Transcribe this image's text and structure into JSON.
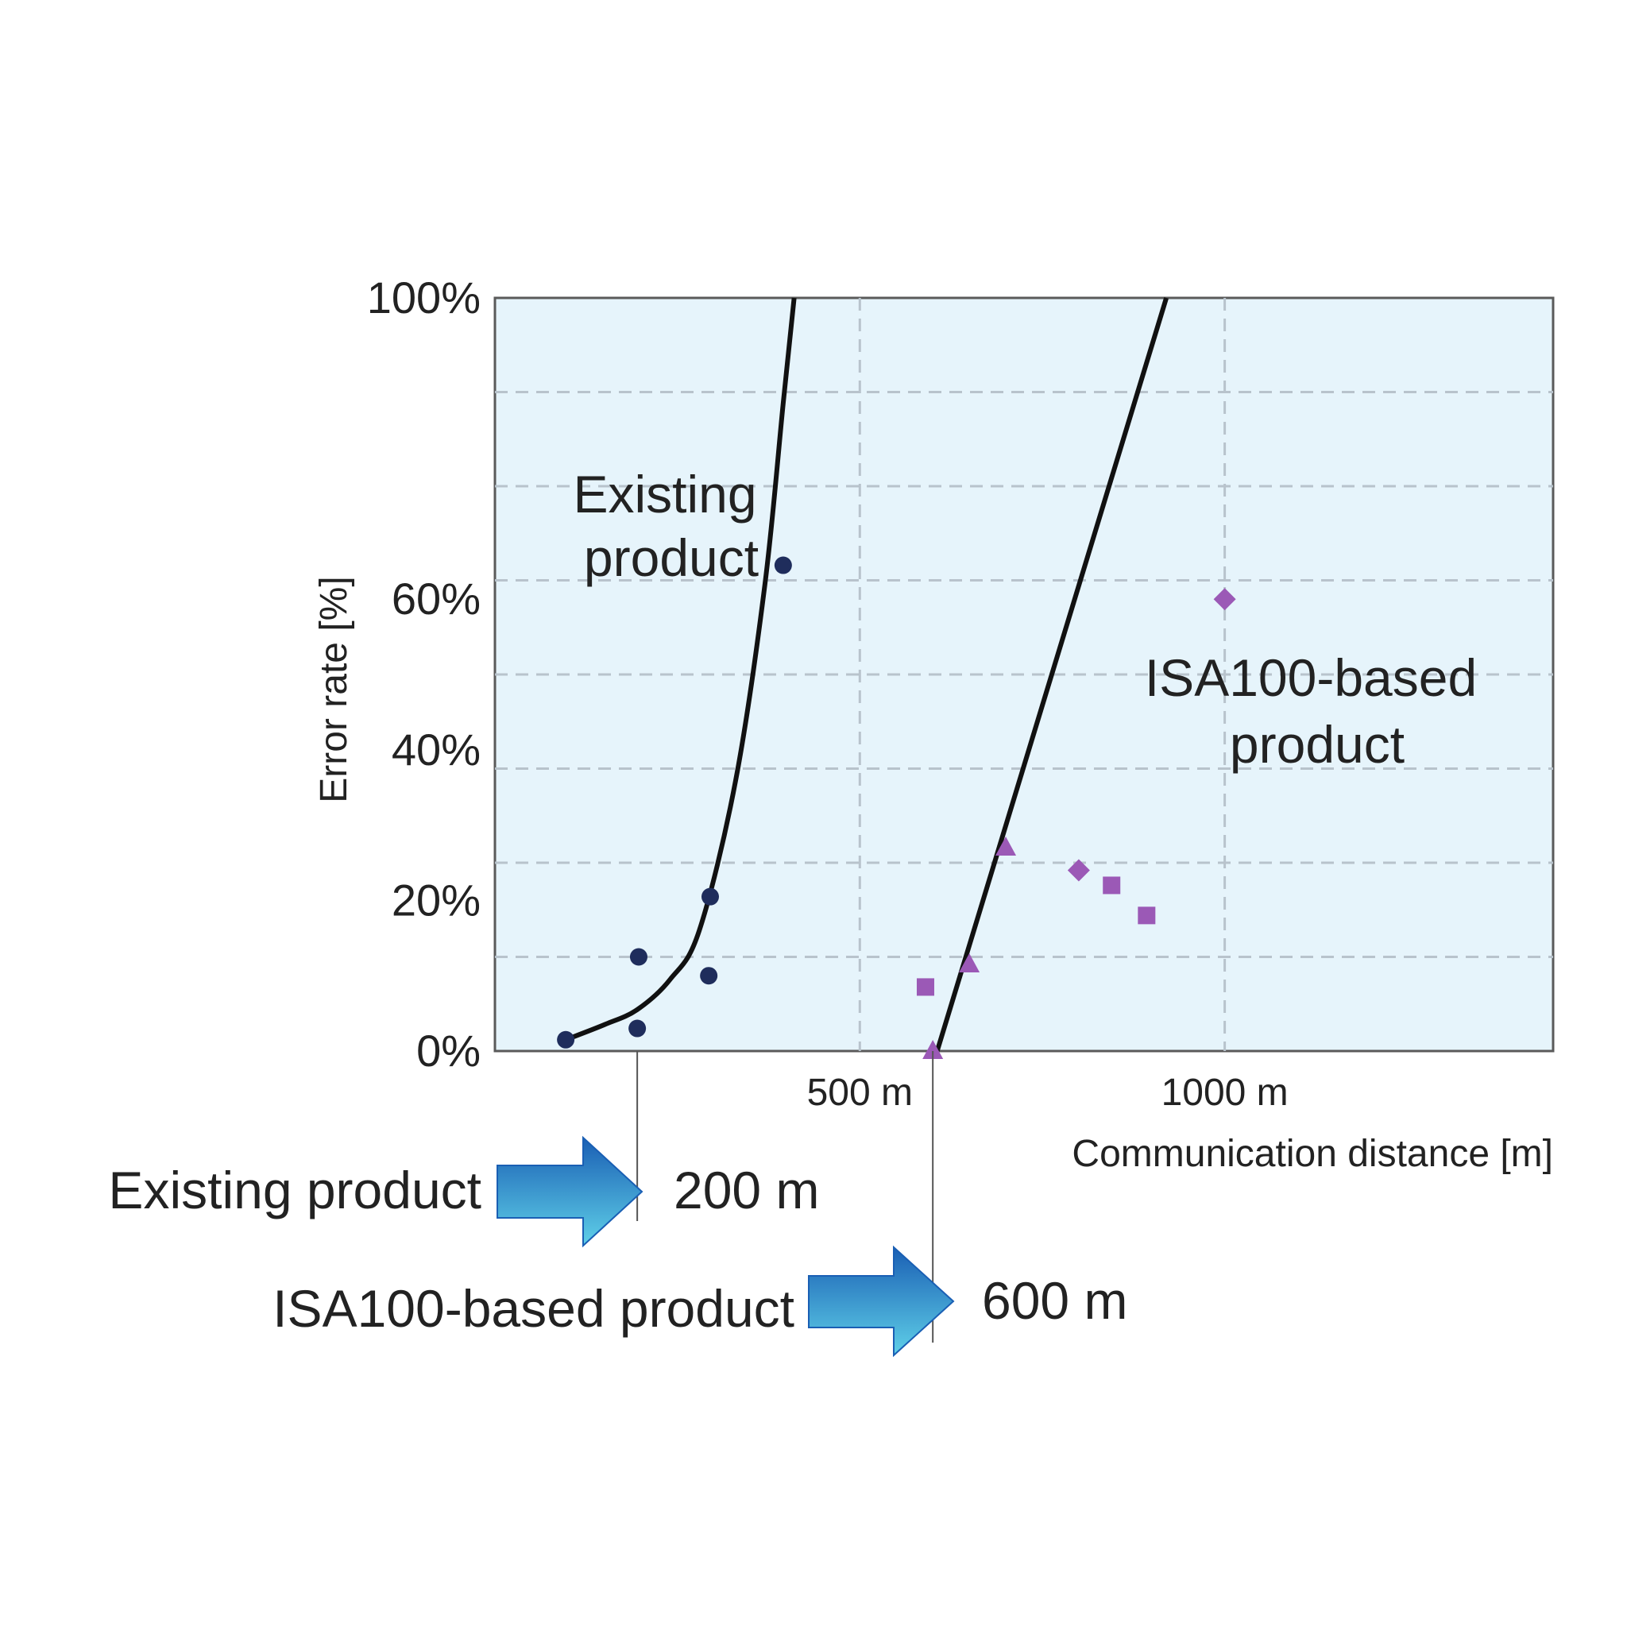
{
  "chart_data": {
    "type": "scatter",
    "xlabel": "Communication distance [m]",
    "ylabel": "Error rate [%]",
    "xlim": [
      0,
      1450
    ],
    "ylim": [
      0,
      100
    ],
    "x_ticks": [
      {
        "value": 500,
        "label": "500 m"
      },
      {
        "value": 1000,
        "label": "1000 m"
      }
    ],
    "y_ticks": [
      {
        "value": 0,
        "label": "0%"
      },
      {
        "value": 20,
        "label": "20%"
      },
      {
        "value": 40,
        "label": "40%"
      },
      {
        "value": 60,
        "label": "60%"
      },
      {
        "value": 100,
        "label": "100%"
      }
    ],
    "grid": true,
    "grid_x": [
      500,
      1000
    ],
    "grid_y": [
      12.5,
      25,
      37.5,
      50,
      62.5,
      75,
      87.5
    ],
    "plot_background": "#e6f4fb",
    "series": [
      {
        "name": "Existing product",
        "color": "#1f2d5c",
        "marker": "circle",
        "points": [
          [
            97,
            1.5
          ],
          [
            195,
            3
          ],
          [
            197,
            12.5
          ],
          [
            293,
            10
          ],
          [
            295,
            20.5
          ],
          [
            395,
            64.5
          ]
        ],
        "trend": [
          [
            97,
            1.5
          ],
          [
            150,
            3.5
          ],
          [
            195,
            5.5
          ],
          [
            240,
            9.5
          ],
          [
            280,
            16
          ],
          [
            330,
            36
          ],
          [
            370,
            62
          ],
          [
            395,
            86
          ],
          [
            410,
            100
          ]
        ]
      },
      {
        "name": "ISA100-based product",
        "color": "#9b59b6",
        "marker": "mixed",
        "points": [
          [
            600,
            0,
            "triangle"
          ],
          [
            590,
            8.5,
            "square"
          ],
          [
            650,
            11.5,
            "triangle"
          ],
          [
            700,
            27,
            "triangle"
          ],
          [
            800,
            24,
            "diamond"
          ],
          [
            845,
            22,
            "square"
          ],
          [
            893,
            18,
            "square"
          ],
          [
            1000,
            60,
            "diamond"
          ]
        ],
        "trend": [
          [
            606,
            0
          ],
          [
            920,
            100
          ]
        ]
      }
    ],
    "annotations": [
      {
        "lines": [
          "Existing",
          "product"
        ]
      },
      {
        "lines": [
          "ISA100-based",
          "product"
        ]
      }
    ],
    "callouts": [
      {
        "label": "Existing product",
        "value": "200 m",
        "x": 195
      },
      {
        "label": "ISA100-based product",
        "value": "600 m",
        "x": 600
      }
    ],
    "arrow_colors": {
      "light": "#5fd0e8",
      "dark": "#1a5fb4"
    }
  }
}
